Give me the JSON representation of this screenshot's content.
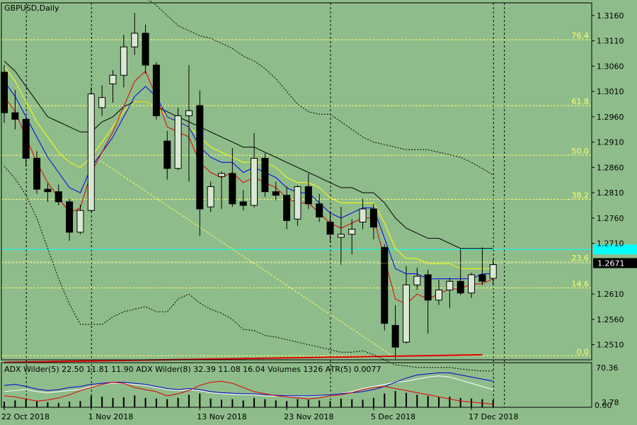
{
  "chart_data": {
    "type": "candlestick",
    "title": "GBPUSD,Daily",
    "colors": {
      "background": "#8FBC8B",
      "bull_body": "#D9E8D3",
      "bear_body": "#000000",
      "wick": "#000000",
      "fib_lines": "#FFFF66",
      "cyan_line": "#00FFFF",
      "ema_red": "#E00000",
      "ema_blue": "#0000EE",
      "ema_yellow": "#FFFF00",
      "ema_black": "#000000",
      "adx_blue": "#0000CC",
      "adx_white": "#FFFFFF",
      "adx_red": "#E00000",
      "volume_bars": "#000000"
    },
    "price_axis": {
      "min": 1.248,
      "max": 1.3185,
      "ticks": [
        1.316,
        1.311,
        1.306,
        1.301,
        1.296,
        1.291,
        1.286,
        1.281,
        1.276,
        1.271,
        1.261,
        1.256,
        1.251
      ],
      "tick_labels": [
        "1.3160",
        "1.3110",
        "1.3060",
        "1.3010",
        "1.2960",
        "1.2910",
        "1.2860",
        "1.2810",
        "1.2760",
        "1.2710",
        "1.2610",
        "1.2560",
        "1.2510"
      ]
    },
    "current_price": {
      "value": 1.2671,
      "label": "1.2671"
    },
    "cyan_level": 1.2698,
    "fib_levels": [
      {
        "label": "76.4",
        "value": 1.3112
      },
      {
        "label": "61.8",
        "value": 1.2982
      },
      {
        "label": "50.0",
        "value": 1.2884
      },
      {
        "label": "38.2",
        "value": 1.2797
      },
      {
        "label": "23.6",
        "value": 1.2673
      },
      {
        "label": "14.6",
        "value": 1.2622
      },
      {
        "label": "0.0",
        "value": 1.2488
      }
    ],
    "date_labels": [
      "22 Oct 2018",
      "1 Nov 2018",
      "13 Nov 2018",
      "23 Nov 2018",
      "5 Dec 2018",
      "17 Dec 2018"
    ],
    "date_label_bars": [
      0,
      8,
      18,
      26,
      34,
      43
    ],
    "period_separator_bars": [
      2,
      8,
      30,
      45,
      46
    ],
    "candles": [
      {
        "o": 1.3048,
        "h": 1.3062,
        "l": 1.2948,
        "c": 1.2968
      },
      {
        "o": 1.2968,
        "h": 1.3013,
        "l": 1.2935,
        "c": 1.2955
      },
      {
        "o": 1.2955,
        "h": 1.2958,
        "l": 1.2862,
        "c": 1.2878
      },
      {
        "o": 1.2878,
        "h": 1.2892,
        "l": 1.2808,
        "c": 1.2817
      },
      {
        "o": 1.2817,
        "h": 1.2828,
        "l": 1.2792,
        "c": 1.2812
      },
      {
        "o": 1.2812,
        "h": 1.2826,
        "l": 1.2785,
        "c": 1.2792
      },
      {
        "o": 1.2792,
        "h": 1.2798,
        "l": 1.2715,
        "c": 1.2732
      },
      {
        "o": 1.2732,
        "h": 1.2786,
        "l": 1.2728,
        "c": 1.2775
      },
      {
        "o": 1.2775,
        "h": 1.3018,
        "l": 1.2772,
        "c": 1.3005
      },
      {
        "o": 1.2978,
        "h": 1.3022,
        "l": 1.2962,
        "c": 1.2998
      },
      {
        "o": 1.3025,
        "h": 1.3052,
        "l": 1.2988,
        "c": 1.3042
      },
      {
        "o": 1.3042,
        "h": 1.3122,
        "l": 1.3018,
        "c": 1.3098
      },
      {
        "o": 1.3098,
        "h": 1.3165,
        "l": 1.3082,
        "c": 1.3125
      },
      {
        "o": 1.3125,
        "h": 1.3142,
        "l": 1.3045,
        "c": 1.3062
      },
      {
        "o": 1.3062,
        "h": 1.3068,
        "l": 1.2955,
        "c": 1.2962
      },
      {
        "o": 1.2912,
        "h": 1.2932,
        "l": 1.2836,
        "c": 1.2858
      },
      {
        "o": 1.2858,
        "h": 1.2978,
        "l": 1.2855,
        "c": 1.2962
      },
      {
        "o": 1.2962,
        "h": 1.3062,
        "l": 1.2832,
        "c": 1.2972
      },
      {
        "o": 1.2982,
        "h": 1.3012,
        "l": 1.2725,
        "c": 1.2778
      },
      {
        "o": 1.2782,
        "h": 1.2832,
        "l": 1.2772,
        "c": 1.2822
      },
      {
        "o": 1.2842,
        "h": 1.2852,
        "l": 1.2778,
        "c": 1.2848
      },
      {
        "o": 1.2848,
        "h": 1.2898,
        "l": 1.2782,
        "c": 1.2788
      },
      {
        "o": 1.2792,
        "h": 1.2815,
        "l": 1.2775,
        "c": 1.2785
      },
      {
        "o": 1.2785,
        "h": 1.2928,
        "l": 1.2781,
        "c": 1.2878
      },
      {
        "o": 1.2878,
        "h": 1.2888,
        "l": 1.2802,
        "c": 1.2812
      },
      {
        "o": 1.2812,
        "h": 1.2832,
        "l": 1.2795,
        "c": 1.2805
      },
      {
        "o": 1.2805,
        "h": 1.2822,
        "l": 1.2738,
        "c": 1.2755
      },
      {
        "o": 1.2758,
        "h": 1.2825,
        "l": 1.2745,
        "c": 1.2822
      },
      {
        "o": 1.2822,
        "h": 1.2848,
        "l": 1.2778,
        "c": 1.2788
      },
      {
        "o": 1.2788,
        "h": 1.2808,
        "l": 1.2752,
        "c": 1.2762
      },
      {
        "o": 1.2752,
        "h": 1.2772,
        "l": 1.2712,
        "c": 1.2728
      },
      {
        "o": 1.2722,
        "h": 1.2782,
        "l": 1.2668,
        "c": 1.2728
      },
      {
        "o": 1.2728,
        "h": 1.2758,
        "l": 1.2688,
        "c": 1.2738
      },
      {
        "o": 1.2752,
        "h": 1.2798,
        "l": 1.2738,
        "c": 1.2778
      },
      {
        "o": 1.2778,
        "h": 1.2788,
        "l": 1.2718,
        "c": 1.2742
      },
      {
        "o": 1.2702,
        "h": 1.2708,
        "l": 1.2538,
        "c": 1.2552
      },
      {
        "o": 1.2548,
        "h": 1.2588,
        "l": 1.2482,
        "c": 1.2505
      },
      {
        "o": 1.2515,
        "h": 1.2665,
        "l": 1.2512,
        "c": 1.2628
      },
      {
        "o": 1.2628,
        "h": 1.2662,
        "l": 1.2618,
        "c": 1.2645
      },
      {
        "o": 1.2648,
        "h": 1.2658,
        "l": 1.2532,
        "c": 1.2598
      },
      {
        "o": 1.2598,
        "h": 1.2638,
        "l": 1.2588,
        "c": 1.2618
      },
      {
        "o": 1.2618,
        "h": 1.2642,
        "l": 1.2582,
        "c": 1.2635
      },
      {
        "o": 1.2635,
        "h": 1.2698,
        "l": 1.2608,
        "c": 1.2612
      },
      {
        "o": 1.2612,
        "h": 1.2652,
        "l": 1.2602,
        "c": 1.2648
      },
      {
        "o": 1.2648,
        "h": 1.2702,
        "l": 1.2628,
        "c": 1.2635
      },
      {
        "o": 1.2641,
        "h": 1.2678,
        "l": 1.2628,
        "c": 1.2668
      }
    ],
    "ma_red": [
      1.3,
      1.297,
      1.292,
      1.287,
      1.283,
      1.28,
      1.277,
      1.278,
      1.285,
      1.289,
      1.293,
      1.298,
      1.303,
      1.305,
      1.3,
      1.294,
      1.293,
      1.292,
      1.287,
      1.285,
      1.284,
      1.285,
      1.283,
      1.284,
      1.283,
      1.282,
      1.28,
      1.279,
      1.279,
      1.277,
      1.275,
      1.274,
      1.275,
      1.276,
      1.276,
      1.268,
      1.26,
      1.259,
      1.261,
      1.26,
      1.261,
      1.262,
      1.262,
      1.263,
      1.263,
      1.264
    ],
    "ma_blue": [
      1.303,
      1.3,
      1.296,
      1.292,
      1.288,
      1.285,
      1.282,
      1.281,
      1.286,
      1.289,
      1.292,
      1.296,
      1.3,
      1.302,
      1.3,
      1.296,
      1.295,
      1.294,
      1.29,
      1.288,
      1.287,
      1.287,
      1.285,
      1.286,
      1.285,
      1.284,
      1.282,
      1.281,
      1.281,
      1.279,
      1.277,
      1.276,
      1.277,
      1.278,
      1.278,
      1.272,
      1.266,
      1.265,
      1.265,
      1.264,
      1.264,
      1.264,
      1.264,
      1.264,
      1.265,
      1.265
    ],
    "ma_yellow": [
      1.306,
      1.303,
      1.299,
      1.295,
      1.292,
      1.289,
      1.287,
      1.286,
      1.288,
      1.291,
      1.294,
      1.297,
      1.299,
      1.299,
      1.298,
      1.296,
      1.295,
      1.294,
      1.292,
      1.29,
      1.289,
      1.288,
      1.287,
      1.287,
      1.287,
      1.286,
      1.284,
      1.283,
      1.283,
      1.282,
      1.28,
      1.279,
      1.279,
      1.279,
      1.279,
      1.275,
      1.27,
      1.268,
      1.268,
      1.267,
      1.267,
      1.267,
      1.266,
      1.266,
      1.266,
      1.266
    ],
    "ma_black": [
      1.307,
      1.305,
      1.302,
      1.299,
      1.296,
      1.295,
      1.294,
      1.293,
      1.293,
      1.295,
      1.296,
      1.298,
      1.299,
      1.299,
      1.298,
      1.297,
      1.296,
      1.295,
      1.294,
      1.293,
      1.292,
      1.291,
      1.29,
      1.29,
      1.289,
      1.288,
      1.287,
      1.286,
      1.285,
      1.284,
      1.283,
      1.282,
      1.282,
      1.281,
      1.281,
      1.279,
      1.276,
      1.274,
      1.273,
      1.272,
      1.272,
      1.271,
      1.27,
      1.27,
      1.27,
      1.27
    ],
    "bb_upper": [
      null,
      null,
      null,
      null,
      null,
      null,
      null,
      null,
      null,
      null,
      null,
      null,
      null,
      1.3195,
      1.318,
      1.316,
      1.314,
      1.313,
      1.312,
      1.3115,
      1.3105,
      1.3095,
      1.308,
      1.307,
      1.3055,
      1.3035,
      1.301,
      1.2985,
      1.297,
      1.2965,
      1.2965,
      1.295,
      1.2935,
      1.292,
      1.291,
      1.2905,
      1.29,
      1.2895,
      1.2895,
      1.2895,
      1.289,
      1.2885,
      1.288,
      1.287,
      1.2858,
      1.2845
    ],
    "bb_lower": [
      1.2862,
      1.2838,
      1.2805,
      1.276,
      1.27,
      1.264,
      1.259,
      1.255,
      1.255,
      1.255,
      1.2565,
      1.2575,
      1.258,
      1.2585,
      1.2575,
      1.2575,
      1.26,
      1.261,
      1.2592,
      1.258,
      1.2572,
      1.256,
      1.254,
      1.2538,
      1.2528,
      1.2525,
      1.252,
      1.2515,
      1.251,
      1.2505,
      1.25,
      1.2495,
      1.2495,
      1.2498,
      1.249,
      1.248,
      1.247,
      1.2468,
      1.2465,
      1.2465,
      1.2465,
      1.2465,
      1.2462,
      1.246,
      1.2458,
      1.2458
    ],
    "fib_trend_line": {
      "from_bar": 8,
      "from_value": 1.2885,
      "to_bar": 36,
      "to_value": 1.2484
    },
    "red_trend_line": {
      "from_bar": 0,
      "from_value": 1.2475,
      "to_bar": 44,
      "to_value": 1.249
    },
    "indicator": {
      "label": "ADX Wilder(5) 22.50 11.81 11.90 ADX Wilder(8) 32.39 11.08 16.04 Volumes 1326 ATR(5) 0.0077",
      "axis_top_label": "70.36",
      "axis_bottom_label_1": "2.78",
      "axis_bottom_label_2": "0.00",
      "min": 0,
      "max": 72,
      "blue_line": [
        42,
        44,
        40,
        35,
        32,
        34,
        38,
        40,
        44,
        46,
        48,
        48,
        46,
        44,
        40,
        36,
        34,
        36,
        34,
        30,
        28,
        27,
        26,
        26,
        24,
        23,
        22,
        22,
        22,
        23,
        24,
        26,
        28,
        30,
        34,
        40,
        48,
        56,
        62,
        64,
        66,
        66,
        62,
        58,
        54,
        50
      ],
      "white_line": [
        30,
        32,
        34,
        30,
        28,
        30,
        32,
        34,
        40,
        44,
        46,
        46,
        44,
        42,
        38,
        34,
        32,
        34,
        32,
        28,
        26,
        25,
        24,
        24,
        22,
        21,
        21,
        21,
        21,
        22,
        24,
        26,
        30,
        36,
        40,
        44,
        48,
        50,
        54,
        58,
        60,
        58,
        52,
        46,
        40,
        34
      ],
      "red_line": [
        22,
        20,
        16,
        12,
        14,
        18,
        24,
        32,
        38,
        44,
        48,
        46,
        38,
        34,
        30,
        22,
        26,
        32,
        42,
        48,
        50,
        46,
        38,
        30,
        26,
        22,
        20,
        18,
        16,
        18,
        22,
        24,
        28,
        34,
        38,
        40,
        36,
        32,
        28,
        24,
        20,
        16,
        12,
        10,
        8,
        6
      ],
      "volumes": [
        18,
        22,
        28,
        20,
        16,
        14,
        18,
        20,
        36,
        34,
        30,
        32,
        38,
        30,
        28,
        26,
        30,
        40,
        44,
        28,
        24,
        26,
        22,
        30,
        26,
        22,
        20,
        26,
        24,
        22,
        20,
        28,
        26,
        24,
        30,
        44,
        52,
        46,
        40,
        36,
        32,
        34,
        30,
        28,
        26,
        24
      ]
    }
  }
}
